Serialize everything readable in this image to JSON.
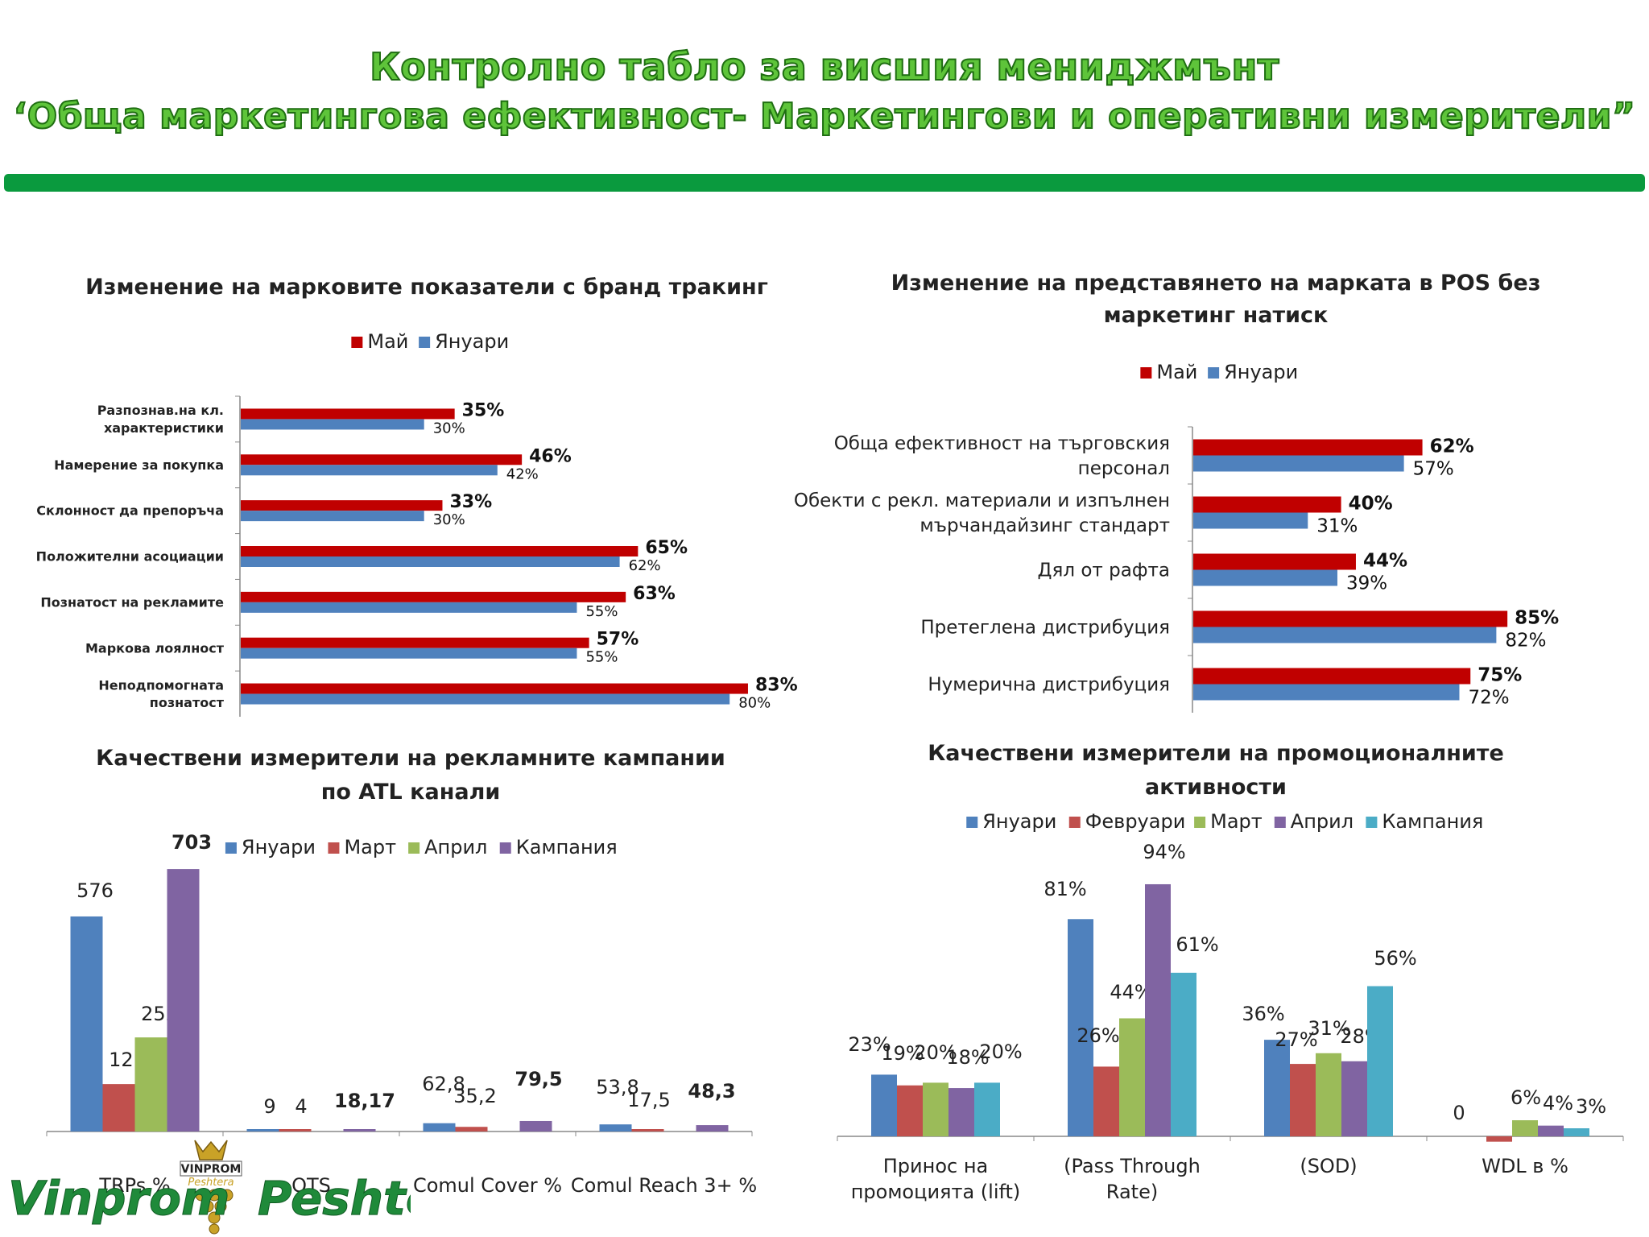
{
  "header": {
    "title_line1": "Контролно табло за висшия мениджмънт",
    "title_line2": "‘Обща маркетингова ефективност- Маркетингови и оперативни измерители”"
  },
  "colors": {
    "title_green": "#5ec43a",
    "bar_green": "#0a9a3e",
    "may_red": "#c00000",
    "jan_blue": "#4f81bd",
    "feb_red": "#c0504d",
    "mar_green": "#9bbb59",
    "apr_purple": "#8064a2",
    "camp_cyan": "#4bacc6"
  },
  "logo": {
    "brand": "Vinprom Peshtera",
    "crest_text": "VINPROM",
    "crest_sub": "Peshtera"
  },
  "chart_data": [
    {
      "type": "bar",
      "orientation": "horizontal",
      "title": "Изменение на марковите показатели с бранд тракинг",
      "categories": [
        "Разпознав.на кл. характеристики",
        "Намерение за  покупка",
        "Склонност да препоръча",
        "Положителни асоциации",
        "Познатост на рекламите",
        "Маркова лоялност",
        "Неподпомогната познатост"
      ],
      "series": [
        {
          "name": "Май",
          "color": "#c00000",
          "values": [
            35,
            46,
            33,
            65,
            63,
            57,
            83
          ],
          "labels": [
            "35%",
            "46%",
            "33%",
            "65%",
            "63%",
            "57%",
            "83%"
          ]
        },
        {
          "name": "Януари",
          "color": "#4f81bd",
          "values": [
            30,
            42,
            30,
            62,
            55,
            55,
            80
          ],
          "labels": [
            "30%",
            "42%",
            "30%",
            "62%",
            "55%",
            "55%",
            "80%"
          ]
        }
      ],
      "xlim": [
        0,
        100
      ],
      "legend": "top"
    },
    {
      "type": "bar",
      "orientation": "horizontal",
      "title": "Изменение на представянето на марката в POS без маркетинг натиск",
      "categories": [
        "Обща ефективност на търговския персонал",
        "Обекти  с рекл. материали и изпълнен мърчандайзинг стандарт",
        "Дял от рафта",
        "Претеглена дистрибуция",
        "Нумерична дистрибуция"
      ],
      "series": [
        {
          "name": "Май",
          "color": "#c00000",
          "values": [
            62,
            40,
            44,
            85,
            75
          ],
          "labels": [
            "62%",
            "40%",
            "44%",
            "85%",
            "75%"
          ]
        },
        {
          "name": "Януари",
          "color": "#4f81bd",
          "values": [
            57,
            31,
            39,
            82,
            72
          ],
          "labels": [
            "57%",
            "31%",
            "39%",
            "82%",
            "72%"
          ]
        }
      ],
      "xlim": [
        0,
        100
      ],
      "legend": "top"
    },
    {
      "type": "bar",
      "title": "Качествени измерители на рекламните кампании по ATL канали",
      "categories": [
        "TRPs %",
        "OTS",
        "Comul Cover %",
        "Comul Reach 3+ %"
      ],
      "series": [
        {
          "name": "Януари",
          "color": "#4f81bd",
          "values": [
            576,
            9,
            62.8,
            53.8
          ],
          "labels": [
            "576",
            "9",
            "62,8",
            "53,8"
          ]
        },
        {
          "name": "Март",
          "color": "#c0504d",
          "values": [
            127,
            4,
            35.2,
            17.5
          ],
          "labels": [
            "127",
            "4",
            "35,2",
            "17,5"
          ]
        },
        {
          "name": "Април",
          "color": "#9bbb59",
          "values": [
            252,
            null,
            null,
            null
          ],
          "labels": [
            "252",
            "",
            "",
            ""
          ]
        },
        {
          "name": "Кампания",
          "color": "#8064a2",
          "values": [
            703,
            18.17,
            79.5,
            48.3
          ],
          "labels": [
            "703",
            "18,17",
            "79,5",
            "48,3"
          ]
        }
      ],
      "ylim": [
        0,
        703
      ],
      "legend": "top"
    },
    {
      "type": "bar",
      "title": "Качествени измерители на промоционалните активности",
      "categories": [
        "Принос на промоцията (lift)",
        "(Pass Through Rate)",
        "(SOD)",
        "WDL  в %"
      ],
      "series": [
        {
          "name": "Януари",
          "color": "#4f81bd",
          "values": [
            23,
            81,
            36,
            0
          ],
          "labels": [
            "23%",
            "81%",
            "36%",
            "0"
          ]
        },
        {
          "name": "Февруари",
          "color": "#c0504d",
          "values": [
            19,
            26,
            27,
            -2
          ],
          "labels": [
            "19%",
            "26%",
            "27%",
            ""
          ]
        },
        {
          "name": "Март",
          "color": "#9bbb59",
          "values": [
            20,
            44,
            31,
            6
          ],
          "labels": [
            "20%",
            "44%",
            "31%",
            "6%"
          ]
        },
        {
          "name": "Април",
          "color": "#8064a2",
          "values": [
            18,
            94,
            28,
            4
          ],
          "labels": [
            "18%",
            "94%",
            "28%",
            "4%"
          ]
        },
        {
          "name": "Кампания",
          "color": "#4bacc6",
          "values": [
            20,
            61,
            56,
            3
          ],
          "labels": [
            "20%",
            "61%",
            "56%",
            "3%"
          ]
        }
      ],
      "ylim": [
        -2,
        94
      ],
      "legend": "top"
    }
  ]
}
